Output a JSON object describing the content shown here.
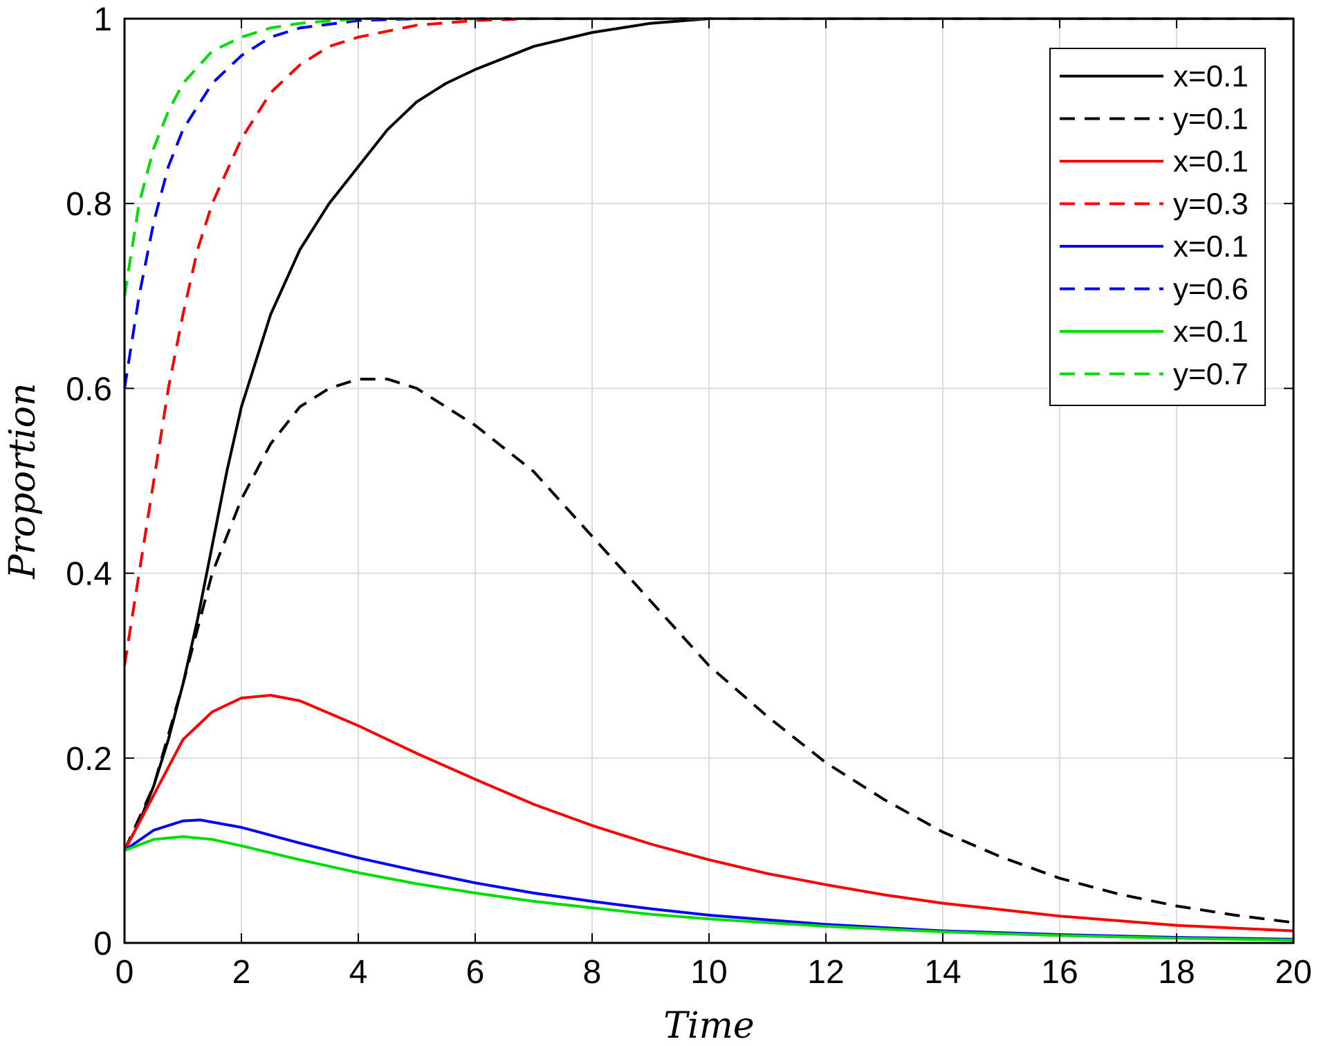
{
  "chart_data": {
    "type": "line",
    "xlabel": "Time",
    "ylabel": "Proportion",
    "xlim": [
      0,
      20
    ],
    "ylim": [
      0,
      1
    ],
    "xticks": [
      0,
      2,
      4,
      6,
      8,
      10,
      12,
      14,
      16,
      18,
      20
    ],
    "yticks": [
      0,
      0.2,
      0.4,
      0.6,
      0.8,
      1
    ],
    "ytick_labels": [
      "0",
      "0.2",
      "0.4",
      "0.6",
      "0.8",
      "1"
    ],
    "grid": true,
    "legend_position": "top-right",
    "series": [
      {
        "name": "x=0.1",
        "color": "#000000",
        "dash": "solid",
        "x": [
          0,
          0.25,
          0.5,
          0.75,
          1,
          1.25,
          1.5,
          1.75,
          2,
          2.5,
          3,
          3.5,
          4,
          4.5,
          5,
          5.5,
          6,
          7,
          8,
          9,
          10,
          12,
          14,
          16,
          18,
          20
        ],
        "y": [
          0.1,
          0.13,
          0.17,
          0.22,
          0.28,
          0.35,
          0.43,
          0.51,
          0.58,
          0.68,
          0.75,
          0.8,
          0.84,
          0.88,
          0.91,
          0.93,
          0.945,
          0.97,
          0.985,
          0.995,
          1,
          1,
          1,
          1,
          1,
          1
        ]
      },
      {
        "name": "y=0.1",
        "color": "#000000",
        "dash": "dashed",
        "x": [
          0,
          0.5,
          1,
          1.5,
          2,
          2.5,
          3,
          3.5,
          4,
          4.5,
          5,
          6,
          7,
          8,
          9,
          10,
          11,
          12,
          13,
          14,
          15,
          16,
          17,
          18,
          19,
          20
        ],
        "y": [
          0.1,
          0.17,
          0.28,
          0.4,
          0.48,
          0.54,
          0.58,
          0.6,
          0.61,
          0.61,
          0.6,
          0.56,
          0.51,
          0.44,
          0.37,
          0.3,
          0.245,
          0.195,
          0.155,
          0.12,
          0.093,
          0.07,
          0.053,
          0.04,
          0.03,
          0.022
        ]
      },
      {
        "name": "x=0.1",
        "color": "#ff0000",
        "dash": "solid",
        "x": [
          0,
          0.5,
          1,
          1.5,
          2,
          2.5,
          3,
          4,
          5,
          6,
          7,
          8,
          9,
          10,
          11,
          12,
          13,
          14,
          15,
          16,
          17,
          18,
          19,
          20
        ],
        "y": [
          0.1,
          0.16,
          0.22,
          0.25,
          0.265,
          0.268,
          0.262,
          0.235,
          0.205,
          0.177,
          0.15,
          0.127,
          0.107,
          0.09,
          0.075,
          0.063,
          0.052,
          0.043,
          0.036,
          0.029,
          0.024,
          0.019,
          0.016,
          0.013
        ]
      },
      {
        "name": "y=0.3",
        "color": "#ff0000",
        "dash": "dashed",
        "x": [
          0,
          0.25,
          0.5,
          0.75,
          1,
          1.25,
          1.5,
          2,
          2.5,
          3,
          3.5,
          4,
          5,
          6,
          7,
          8,
          10,
          14,
          20
        ],
        "y": [
          0.3,
          0.4,
          0.5,
          0.6,
          0.68,
          0.75,
          0.8,
          0.87,
          0.92,
          0.95,
          0.97,
          0.98,
          0.993,
          0.998,
          1,
          1,
          1,
          1,
          1
        ]
      },
      {
        "name": "x=0.1",
        "color": "#0000ff",
        "dash": "solid",
        "x": [
          0,
          0.5,
          1,
          1.3,
          2,
          3,
          4,
          5,
          6,
          7,
          8,
          9,
          10,
          12,
          14,
          16,
          18,
          20
        ],
        "y": [
          0.1,
          0.122,
          0.132,
          0.133,
          0.125,
          0.108,
          0.092,
          0.078,
          0.065,
          0.054,
          0.045,
          0.037,
          0.03,
          0.02,
          0.013,
          0.009,
          0.006,
          0.004
        ]
      },
      {
        "name": "y=0.6",
        "color": "#0000ff",
        "dash": "dashed",
        "x": [
          0,
          0.25,
          0.5,
          0.75,
          1,
          1.5,
          2,
          2.5,
          3,
          4,
          5,
          6,
          10,
          20
        ],
        "y": [
          0.6,
          0.7,
          0.78,
          0.84,
          0.88,
          0.93,
          0.96,
          0.98,
          0.99,
          0.998,
          1,
          1,
          1,
          1
        ]
      },
      {
        "name": "x=0.1",
        "color": "#00dd00",
        "dash": "solid",
        "x": [
          0,
          0.5,
          1,
          1.5,
          2,
          3,
          4,
          5,
          6,
          7,
          8,
          9,
          10,
          12,
          14,
          16,
          18,
          20
        ],
        "y": [
          0.1,
          0.112,
          0.115,
          0.112,
          0.105,
          0.09,
          0.076,
          0.064,
          0.054,
          0.045,
          0.038,
          0.031,
          0.026,
          0.018,
          0.012,
          0.008,
          0.005,
          0.003
        ]
      },
      {
        "name": "y=0.7",
        "color": "#00dd00",
        "dash": "dashed",
        "x": [
          0,
          0.25,
          0.5,
          0.75,
          1,
          1.5,
          2,
          2.5,
          3,
          4,
          5,
          10,
          20
        ],
        "y": [
          0.7,
          0.8,
          0.86,
          0.9,
          0.93,
          0.965,
          0.98,
          0.99,
          0.995,
          1,
          1,
          1,
          1
        ]
      }
    ]
  }
}
